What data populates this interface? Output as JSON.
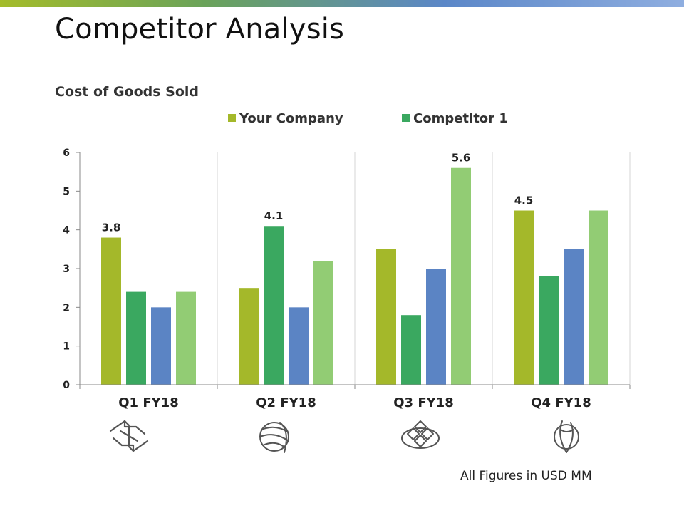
{
  "slide": {
    "title": "Competitor Analysis",
    "footnote": "All Figures in USD MM"
  },
  "colors": {
    "series1": "#a4b82a",
    "series2": "#3aa860",
    "series3": "#5b84c4",
    "series4": "#92cc74",
    "axis": "#888888",
    "grid": "#d4d4d4",
    "text": "#222222",
    "icon_stroke": "#555555"
  },
  "chart_data": {
    "type": "bar",
    "title": "Cost of Goods Sold",
    "categories": [
      "Q1 FY18",
      "Q2 FY18",
      "Q3 FY18",
      "Q4 FY18"
    ],
    "series": [
      {
        "name": "Your Company",
        "values": [
          3.8,
          2.5,
          3.5,
          4.5
        ]
      },
      {
        "name": "Competitor 1",
        "values": [
          2.4,
          4.1,
          1.8,
          2.8
        ]
      },
      {
        "name": "",
        "values": [
          2.0,
          2.0,
          3.0,
          3.5
        ]
      },
      {
        "name": "",
        "values": [
          2.4,
          3.2,
          5.6,
          4.5
        ]
      }
    ],
    "data_labels": [
      {
        "category": 0,
        "series": 0,
        "text": "3.8"
      },
      {
        "category": 1,
        "series": 1,
        "text": "4.1"
      },
      {
        "category": 2,
        "series": 3,
        "text": "5.6"
      },
      {
        "category": 3,
        "series": 0,
        "text": "4.5"
      }
    ],
    "yticks": [
      "0",
      "1",
      "2",
      "3",
      "4",
      "5",
      "6"
    ],
    "ylim": [
      0,
      6
    ],
    "xlabel": "",
    "ylabel": "",
    "grid": "vertical separators between categories",
    "legend": "top-center"
  },
  "icons": [
    "arrows-exchange-icon",
    "globe-ribbon-icon",
    "diamond-cluster-icon",
    "leaf-circle-icon"
  ]
}
